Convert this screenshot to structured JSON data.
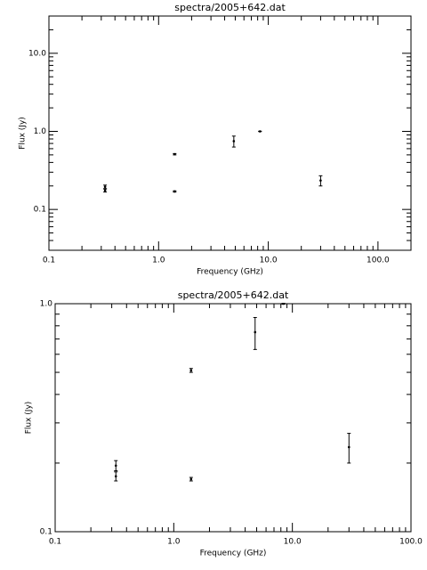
{
  "chart_data": [
    {
      "type": "scatter",
      "title": "spectra/2005+642.dat",
      "x_label": "Frequency (GHz)",
      "y_label": "Flux (Jy)",
      "xscale": "log",
      "yscale": "log",
      "color": "#000000",
      "xlim": [
        0.1,
        200
      ],
      "ylim": [
        0.03,
        30
      ],
      "xticks": [
        0.1,
        {
          "value": 1,
          "label": "1.0"
        },
        {
          "value": 10,
          "label": "10.0"
        },
        {
          "value": 100,
          "label": "100.0"
        }
      ],
      "yticks": [
        0.1,
        {
          "value": 1,
          "label": "1.0"
        },
        {
          "value": 10,
          "label": "10.0"
        }
      ],
      "x": [
        0.325,
        0.325,
        1.4,
        1.4,
        4.85,
        8.4,
        30
      ],
      "series": [
        {
          "values": [
            0.195,
            0.175,
            0.51,
            0.17,
            0.75,
            1.0,
            0.235
          ],
          "errors": [
            0.01,
            0.008,
            0.01,
            0.003,
            0.12,
            0.005,
            0.035
          ]
        }
      ]
    },
    {
      "type": "scatter",
      "title": "spectra/2005+642.dat",
      "x_label": "Frequency (GHz)",
      "y_label": "Flux (Jy)",
      "xscale": "log",
      "yscale": "log",
      "color": "#000000",
      "xlim": [
        0.1,
        100
      ],
      "ylim": [
        0.1,
        1
      ],
      "xticks": [
        0.1,
        {
          "value": 1,
          "label": "1.0"
        },
        {
          "value": 10,
          "label": "10.0"
        },
        {
          "value": 100,
          "label": "100.0"
        }
      ],
      "yticks": [
        0.1,
        {
          "value": 1,
          "label": "1.0"
        }
      ],
      "x": [
        0.325,
        0.325,
        1.4,
        1.4,
        4.85,
        8.4,
        30
      ],
      "series": [
        {
          "values": [
            0.195,
            0.175,
            0.51,
            0.17,
            0.75,
            1.0,
            0.235
          ],
          "errors": [
            0.01,
            0.008,
            0.01,
            0.003,
            0.12,
            0.005,
            0.035
          ]
        }
      ]
    }
  ]
}
